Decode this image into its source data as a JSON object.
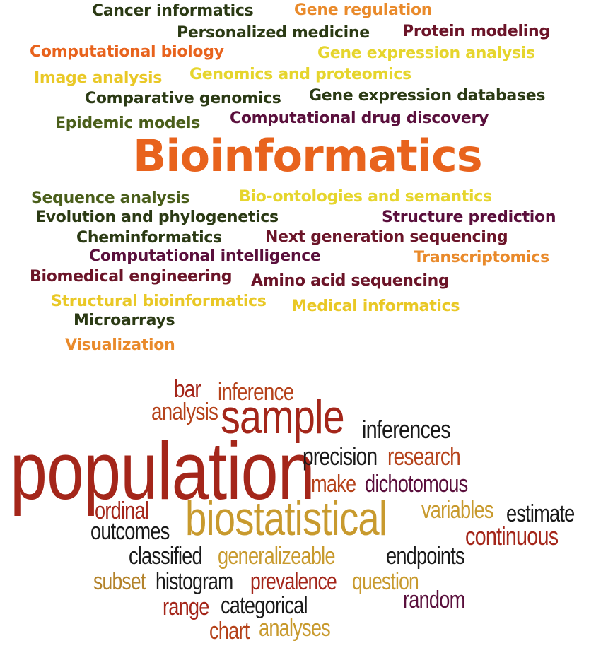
{
  "word_clouds": [
    {
      "words": [
        {
          "text": "Cancer informatics",
          "color": "#2b3a14"
        },
        {
          "text": "Gene regulation",
          "color": "#e98a2b"
        },
        {
          "text": "Personalized medicine",
          "color": "#2b3a14"
        },
        {
          "text": "Protein modeling",
          "color": "#6b1428"
        },
        {
          "text": "Computational biology",
          "color": "#e8631d"
        },
        {
          "text": "Gene expression analysis",
          "color": "#e6d52d"
        },
        {
          "text": "Image analysis",
          "color": "#e9c826"
        },
        {
          "text": "Genomics and proteomics",
          "color": "#e6d52d"
        },
        {
          "text": "Comparative genomics",
          "color": "#2b3a14"
        },
        {
          "text": "Gene expression databases",
          "color": "#2b3a14"
        },
        {
          "text": "Epidemic models",
          "color": "#4a5e1a"
        },
        {
          "text": "Computational drug discovery",
          "color": "#5a0f3c"
        },
        {
          "text": "Bioinformatics",
          "color": "#e8631d"
        },
        {
          "text": "Sequence analysis",
          "color": "#4a5e1a"
        },
        {
          "text": "Bio-ontologies and semantics",
          "color": "#e6d52d"
        },
        {
          "text": "Evolution and phylogenetics",
          "color": "#2b3a14"
        },
        {
          "text": "Structure prediction",
          "color": "#5a0f3c"
        },
        {
          "text": "Cheminformatics",
          "color": "#2b3a14"
        },
        {
          "text": "Next generation sequencing",
          "color": "#6b1428"
        },
        {
          "text": "Computational intelligence",
          "color": "#5a0f3c"
        },
        {
          "text": "Transcriptomics",
          "color": "#e98a2b"
        },
        {
          "text": "Biomedical engineering",
          "color": "#6b1428"
        },
        {
          "text": "Amino acid sequencing",
          "color": "#6b1428"
        },
        {
          "text": "Structural bioinformatics",
          "color": "#e9c826"
        },
        {
          "text": "Medical informatics",
          "color": "#e9c826"
        },
        {
          "text": "Microarrays",
          "color": "#2b3a14"
        },
        {
          "text": "Visualization",
          "color": "#e98a2b"
        }
      ]
    },
    {
      "words": [
        {
          "text": "bar",
          "color": "#a4261a"
        },
        {
          "text": "inference",
          "color": "#b5421a"
        },
        {
          "text": "analysis",
          "color": "#b5421a"
        },
        {
          "text": "sample",
          "color": "#a4261a"
        },
        {
          "text": "inferences",
          "color": "#1a1a1a"
        },
        {
          "text": "population",
          "color": "#a4261a"
        },
        {
          "text": "precision",
          "color": "#1a1a1a"
        },
        {
          "text": "research",
          "color": "#b5421a"
        },
        {
          "text": "make",
          "color": "#b5421a"
        },
        {
          "text": "dichotomous",
          "color": "#6b1428"
        },
        {
          "text": "ordinal",
          "color": "#a4261a"
        },
        {
          "text": "biostatistical",
          "color": "#c89a2e"
        },
        {
          "text": "variables",
          "color": "#c89a2e"
        },
        {
          "text": "estimate",
          "color": "#1a1a1a"
        },
        {
          "text": "outcomes",
          "color": "#1a1a1a"
        },
        {
          "text": "continuous",
          "color": "#a4261a"
        },
        {
          "text": "classified",
          "color": "#1a1a1a"
        },
        {
          "text": "generalizeable",
          "color": "#c89a2e"
        },
        {
          "text": "endpoints",
          "color": "#1a1a1a"
        },
        {
          "text": "subset",
          "color": "#b3822a"
        },
        {
          "text": "histogram",
          "color": "#1a1a1a"
        },
        {
          "text": "prevalence",
          "color": "#a4261a"
        },
        {
          "text": "question",
          "color": "#c89a2e"
        },
        {
          "text": "range",
          "color": "#a4261a"
        },
        {
          "text": "categorical",
          "color": "#1a1a1a"
        },
        {
          "text": "random",
          "color": "#6b1428"
        },
        {
          "text": "chart",
          "color": "#b5421a"
        },
        {
          "text": "analyses",
          "color": "#c89a2e"
        }
      ]
    }
  ]
}
